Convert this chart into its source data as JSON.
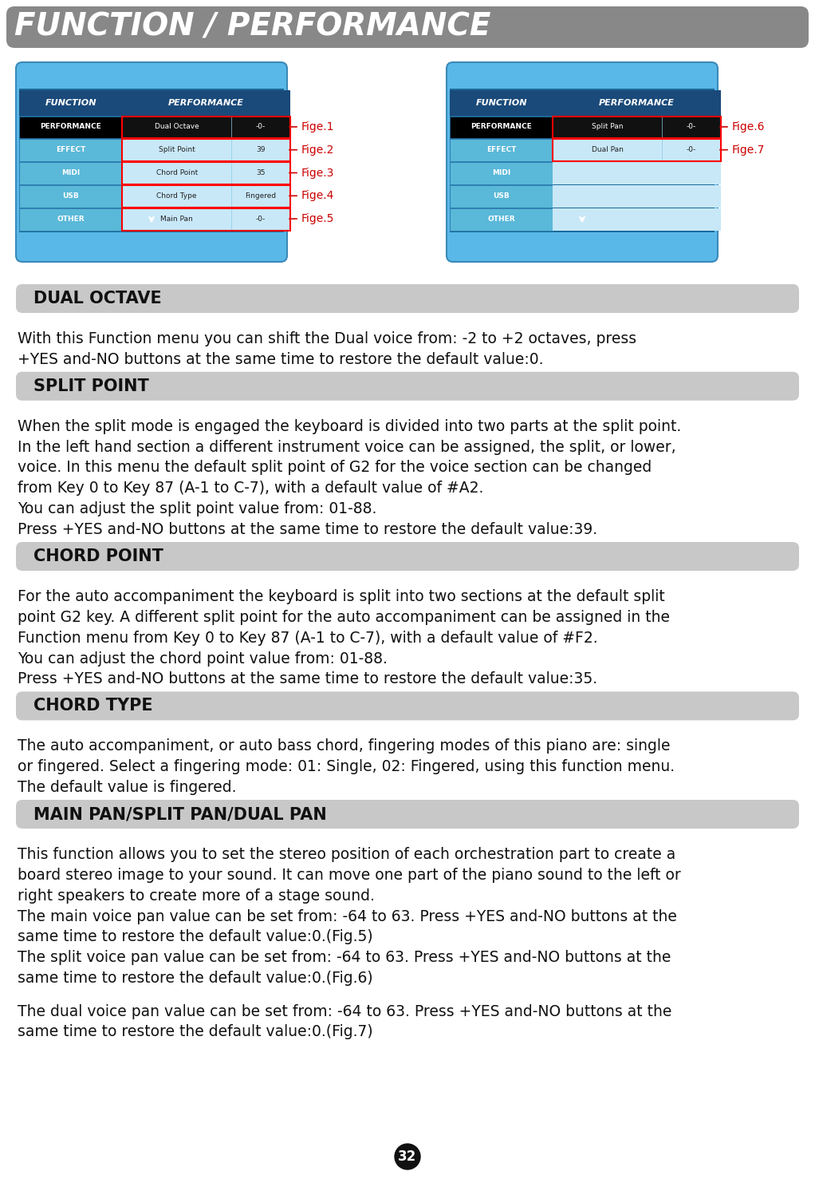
{
  "title": "FUNCTION / PERFORMANCE",
  "title_bg": "#888888",
  "title_color": "#ffffff",
  "page_bg": "#ffffff",
  "section_bg": "#c8c8c8",
  "section_text_color": "#000000",
  "sections": [
    {
      "label": "DUAL OCTAVE",
      "key": "dual_octave"
    },
    {
      "label": "SPLIT POINT",
      "key": "split_point"
    },
    {
      "label": "CHORD POINT",
      "key": "chord_point"
    },
    {
      "label": "CHORD TYPE",
      "key": "chord_type"
    },
    {
      "label": "MAIN PAN/SPLIT PAN/DUAL PAN",
      "key": "pan"
    }
  ],
  "body_texts": {
    "dual_octave": "With this Function menu you can shift the Dual voice from: -2 to +2 octaves, press\n+YES and-NO buttons at the same time to restore the default value:0.",
    "split_point": "When the split mode is engaged the keyboard is divided into two parts at the split point.\nIn the left hand section a different instrument voice can be assigned, the split, or lower,\nvoice. In this menu the default split point of G2 for the voice section can be changed\nfrom Key 0 to Key 87 (A-1 to C-7), with a default value of #A2.\nYou can adjust the split point value from: 01-88.\nPress +YES and-NO buttons at the same time to restore the default value:39.",
    "chord_point": "For the auto accompaniment the keyboard is split into two sections at the default split\npoint G2 key. A different split point for the auto accompaniment can be assigned in the\nFunction menu from Key 0 to Key 87 (A-1 to C-7), with a default value of #F2.\nYou can adjust the chord point value from: 01-88.\nPress +YES and-NO buttons at the same time to restore the default value:35.",
    "chord_type": "The auto accompaniment, or auto bass chord, fingering modes of this piano are: single\nor fingered. Select a fingering mode: 01: Single, 02: Fingered, using this function menu.\nThe default value is fingered.",
    "pan": "This function allows you to set the stereo position of each orchestration part to create a\nboard stereo image to your sound. It can move one part of the piano sound to the left or\nright speakers to create more of a stage sound.\nThe main voice pan value can be set from: -64 to 63. Press +YES and-NO buttons at the\nsame time to restore the default value:0.(Fig.5)\nThe split voice pan value can be set from: -64 to 63. Press +YES and-NO buttons at the\nsame time to restore the default value:0.(Fig.6)\n\nThe dual voice pan value can be set from: -64 to 63. Press +YES and-NO buttons at the\nsame time to restore the default value:0.(Fig.7)"
  },
  "footer_text": "FUNCTION / PERFORMANCE",
  "page_number": "32",
  "fige_labels_left": [
    "Fige.1",
    "Fige.2",
    "Fige.3",
    "Fige.4",
    "Fige.5"
  ],
  "fige_labels_right": [
    "Fige.6",
    "Fige.7"
  ]
}
